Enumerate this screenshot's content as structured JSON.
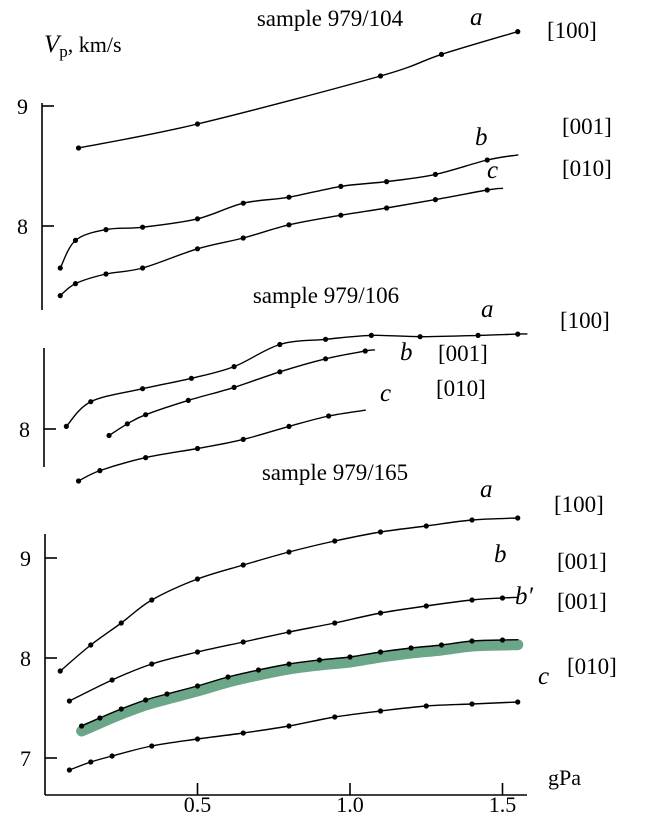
{
  "chart_data": [
    {
      "type": "line",
      "title": "sample 979/104",
      "ylabel_main": "V",
      "ylabel_sub": "p",
      "ylabel_unit": ", km/s",
      "yticks": [
        {
          "value": 8,
          "label": "8"
        },
        {
          "value": 9,
          "label": "9"
        }
      ],
      "series": [
        {
          "name": "a",
          "direction": "[100]",
          "x": [
            0.11,
            0.5,
            1.1,
            1.3,
            1.55
          ],
          "y": [
            8.65,
            8.85,
            9.25,
            9.43,
            9.62
          ],
          "end_x": 1.55
        },
        {
          "name": "b",
          "direction": "[001]",
          "x": [
            0.05,
            0.1,
            0.2,
            0.32,
            0.5,
            0.65,
            0.8,
            0.97,
            1.12,
            1.28,
            1.45
          ],
          "y": [
            7.65,
            7.88,
            7.97,
            7.99,
            8.06,
            8.19,
            8.24,
            8.33,
            8.37,
            8.43,
            8.55
          ],
          "end_x": 1.55
        },
        {
          "name": "c",
          "direction": "[010]",
          "x": [
            0.05,
            0.1,
            0.2,
            0.32,
            0.5,
            0.65,
            0.8,
            0.97,
            1.12,
            1.28,
            1.45
          ],
          "y": [
            7.42,
            7.52,
            7.6,
            7.65,
            7.81,
            7.9,
            8.01,
            8.09,
            8.15,
            8.22,
            8.3
          ],
          "end_x": 1.5
        }
      ]
    },
    {
      "type": "line",
      "title": "sample 979/106",
      "yticks": [
        {
          "value": 8,
          "label": "8"
        }
      ],
      "series": [
        {
          "name": "a",
          "direction": "[100]",
          "x": [
            0.07,
            0.15,
            0.32,
            0.48,
            0.62,
            0.77,
            0.92,
            1.07,
            1.23,
            1.42,
            1.55
          ],
          "y": [
            8.02,
            8.21,
            8.31,
            8.39,
            8.48,
            8.65,
            8.69,
            8.72,
            8.71,
            8.72,
            8.73
          ],
          "end_x": 1.58
        },
        {
          "name": "b",
          "direction": "[001]",
          "x": [
            0.21,
            0.27,
            0.33,
            0.47,
            0.62,
            0.77,
            0.92,
            1.05
          ],
          "y": [
            7.95,
            8.04,
            8.11,
            8.22,
            8.32,
            8.44,
            8.54,
            8.6
          ],
          "end_x": 1.08
        },
        {
          "name": "c",
          "direction": "[010]",
          "x": [
            0.11,
            0.18,
            0.33,
            0.5,
            0.65,
            0.8,
            0.93
          ],
          "y": [
            7.6,
            7.68,
            7.78,
            7.85,
            7.92,
            8.02,
            8.1
          ],
          "end_x": 1.05
        }
      ]
    },
    {
      "type": "line",
      "title": "sample 979/165",
      "xlabel": "gPa",
      "xlim": [
        0,
        1.6
      ],
      "xticks": [
        {
          "value": 0.5,
          "label": "0.5"
        },
        {
          "value": 1.0,
          "label": "1.0"
        },
        {
          "value": 1.5,
          "label": "1.5"
        }
      ],
      "yticks": [
        {
          "value": 7,
          "label": "7"
        },
        {
          "value": 8,
          "label": "8"
        },
        {
          "value": 9,
          "label": "9"
        }
      ],
      "series": [
        {
          "name": "a",
          "direction": "[100]",
          "x": [
            0.05,
            0.15,
            0.25,
            0.35,
            0.5,
            0.65,
            0.8,
            0.95,
            1.1,
            1.25,
            1.4,
            1.55
          ],
          "y": [
            7.87,
            8.13,
            8.35,
            8.58,
            8.79,
            8.93,
            9.06,
            9.17,
            9.26,
            9.32,
            9.38,
            9.4
          ],
          "end_x": 1.55
        },
        {
          "name": "b",
          "direction": "[001]",
          "x": [
            0.08,
            0.22,
            0.35,
            0.5,
            0.65,
            0.8,
            0.95,
            1.1,
            1.25,
            1.4,
            1.5
          ],
          "y": [
            7.57,
            7.78,
            7.94,
            8.06,
            8.16,
            8.26,
            8.35,
            8.45,
            8.52,
            8.58,
            8.6
          ],
          "end_x": 1.55
        },
        {
          "name": "b′",
          "direction": "[001]",
          "x": [
            0.12,
            0.18,
            0.25,
            0.33,
            0.4,
            0.5,
            0.6,
            0.7,
            0.8,
            0.9,
            1.0,
            1.1,
            1.2,
            1.3,
            1.4,
            1.5
          ],
          "y": [
            7.32,
            7.4,
            7.49,
            7.58,
            7.64,
            7.72,
            7.81,
            7.88,
            7.94,
            7.98,
            8.01,
            8.06,
            8.1,
            8.13,
            8.17,
            8.18
          ],
          "end_x": 1.55,
          "highlight_color": "#5c9c7c"
        },
        {
          "name": "c",
          "direction": "[010]",
          "x": [
            0.08,
            0.15,
            0.22,
            0.35,
            0.5,
            0.65,
            0.8,
            0.95,
            1.1,
            1.25,
            1.4,
            1.55
          ],
          "y": [
            6.88,
            6.96,
            7.02,
            7.12,
            7.19,
            7.25,
            7.32,
            7.41,
            7.47,
            7.52,
            7.54,
            7.56
          ],
          "end_x": 1.55
        }
      ]
    }
  ]
}
